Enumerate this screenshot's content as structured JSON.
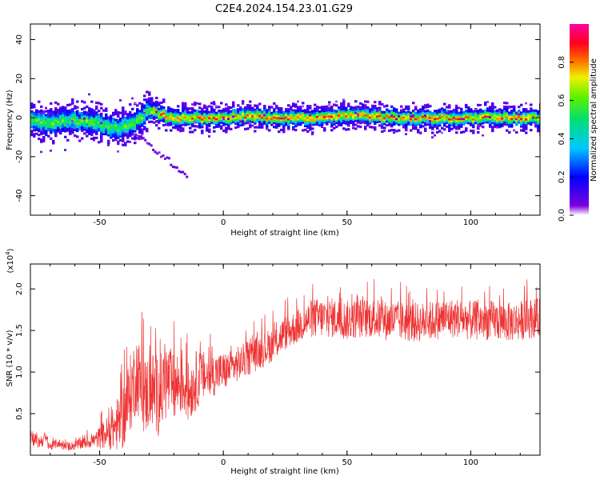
{
  "title": "C2E4.2024.154.23.01.G29",
  "chart_data": [
    {
      "type": "heatmap",
      "xlabel": "Height of straight line (km)",
      "ylabel": "Frequency (Hz)",
      "xlim": [
        -78,
        128
      ],
      "ylim": [
        -50,
        48
      ],
      "xticks": [
        -50,
        0,
        50,
        100
      ],
      "yticks": [
        -40,
        -20,
        0,
        20,
        40
      ],
      "xtick_labels": [
        "-50",
        "0",
        "50",
        "100"
      ],
      "ytick_labels": [
        "-40",
        "-20",
        "0",
        "20",
        "40"
      ],
      "colorbar": {
        "label": "Normalized spectral amplitude",
        "range": [
          0,
          1
        ],
        "ticks": [
          0.0,
          0.2,
          0.4,
          0.6,
          0.8
        ],
        "tick_labels": [
          "0.0",
          "0.2",
          "0.4",
          "0.6",
          "0.8"
        ],
        "colormap": "rainbow (purple-blue-cyan-green-yellow-red-magenta)"
      },
      "trace": {
        "description": "dominant frequency ridge vs height",
        "x": [
          -78,
          -70,
          -62,
          -55,
          -48,
          -42,
          -36,
          -30,
          -26,
          -20,
          -10,
          0,
          10,
          20,
          30,
          40,
          50,
          60,
          70,
          80,
          90,
          100,
          110,
          120,
          128
        ],
        "y": [
          -1,
          -3,
          -1,
          -2,
          -4,
          -5,
          -2,
          4,
          2,
          0,
          0,
          0,
          1,
          0,
          0,
          0,
          1,
          1,
          0,
          0,
          0,
          0,
          0,
          0,
          0
        ]
      }
    },
    {
      "type": "line",
      "xlabel": "Height of straight line (km)",
      "ylabel": "SNR (10 * v/v)",
      "y_multiplier_label": "(x10",
      "y_multiplier_exp": "4",
      "y_multiplier_close": ")",
      "xlim": [
        -78,
        128
      ],
      "ylim": [
        0,
        2.3
      ],
      "xticks": [
        -50,
        0,
        50,
        100
      ],
      "yticks": [
        0.5,
        1.0,
        1.5,
        2.0
      ],
      "xtick_labels": [
        "-50",
        "0",
        "50",
        "100"
      ],
      "ytick_labels": [
        "0.5",
        "1.0",
        "1.5",
        "2.0"
      ],
      "color": "#ee3333",
      "series": [
        {
          "x": [
            -78,
            -75,
            -72,
            -70,
            -67,
            -64,
            -60,
            -56,
            -52,
            -48,
            -45,
            -42,
            -40,
            -37,
            -35,
            -32,
            -29,
            -26,
            -23,
            -20,
            -17,
            -14,
            -11,
            -8,
            -5,
            -2,
            0,
            3,
            6,
            9,
            12,
            15,
            18,
            21,
            24,
            27,
            30,
            33,
            36,
            40,
            45,
            50,
            55,
            60,
            65,
            70,
            75,
            80,
            85,
            90,
            95,
            100,
            105,
            110,
            115,
            120,
            125,
            128
          ],
          "y": [
            0.25,
            0.15,
            0.2,
            0.1,
            0.15,
            0.1,
            0.12,
            0.15,
            0.18,
            0.25,
            0.3,
            0.4,
            0.5,
            0.8,
            1.0,
            0.7,
            0.8,
            0.7,
            0.9,
            0.8,
            0.9,
            0.75,
            0.9,
            0.95,
            0.95,
            1.0,
            1.0,
            1.05,
            1.1,
            1.15,
            1.2,
            1.25,
            1.3,
            1.35,
            1.45,
            1.5,
            1.55,
            1.6,
            1.65,
            1.65,
            1.65,
            1.62,
            1.65,
            1.65,
            1.62,
            1.62,
            1.6,
            1.6,
            1.62,
            1.65,
            1.65,
            1.62,
            1.62,
            1.62,
            1.6,
            1.62,
            1.65,
            1.65
          ],
          "amp": [
            0.2,
            0.12,
            0.15,
            0.08,
            0.1,
            0.08,
            0.1,
            0.12,
            0.15,
            0.3,
            0.4,
            0.6,
            0.7,
            0.8,
            0.8,
            0.8,
            0.8,
            0.8,
            0.8,
            0.7,
            0.7,
            0.6,
            0.6,
            0.5,
            0.45,
            0.4,
            0.4,
            0.35,
            0.35,
            0.35,
            0.35,
            0.35,
            0.35,
            0.35,
            0.35,
            0.35,
            0.35,
            0.35,
            0.4,
            0.4,
            0.4,
            0.4,
            0.4,
            0.4,
            0.4,
            0.4,
            0.4,
            0.4,
            0.4,
            0.4,
            0.4,
            0.4,
            0.4,
            0.4,
            0.4,
            0.4,
            0.4,
            0.4
          ]
        }
      ]
    }
  ]
}
